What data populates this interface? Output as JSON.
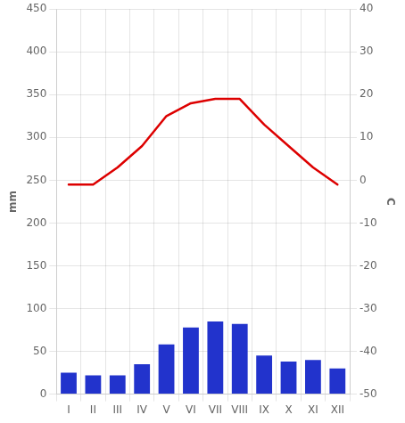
{
  "chart_data": {
    "type": "bar",
    "categories": [
      "I",
      "II",
      "III",
      "IV",
      "V",
      "VI",
      "VII",
      "VIII",
      "IX",
      "X",
      "XI",
      "XII"
    ],
    "series": [
      {
        "type": "bar",
        "color": "#2233CC",
        "values": [
          25,
          22,
          22,
          35,
          58,
          78,
          85,
          82,
          45,
          38,
          40,
          30
        ]
      },
      {
        "type": "line",
        "color": "#DD0000",
        "axis": "y2",
        "values": [
          -1,
          -1,
          3,
          8,
          15,
          18,
          19,
          19,
          13,
          8,
          3,
          -1
        ]
      }
    ],
    "ylabel": "mm",
    "y2label": "C",
    "ylim": [
      0,
      450
    ],
    "yticks": [
      0,
      50,
      100,
      150,
      200,
      250,
      300,
      350,
      400,
      450
    ],
    "y2lim": [
      -50,
      40
    ],
    "y2ticks": [
      -50,
      -40,
      -30,
      -20,
      -10,
      0,
      10,
      20,
      30,
      40
    ],
    "grid": true
  }
}
